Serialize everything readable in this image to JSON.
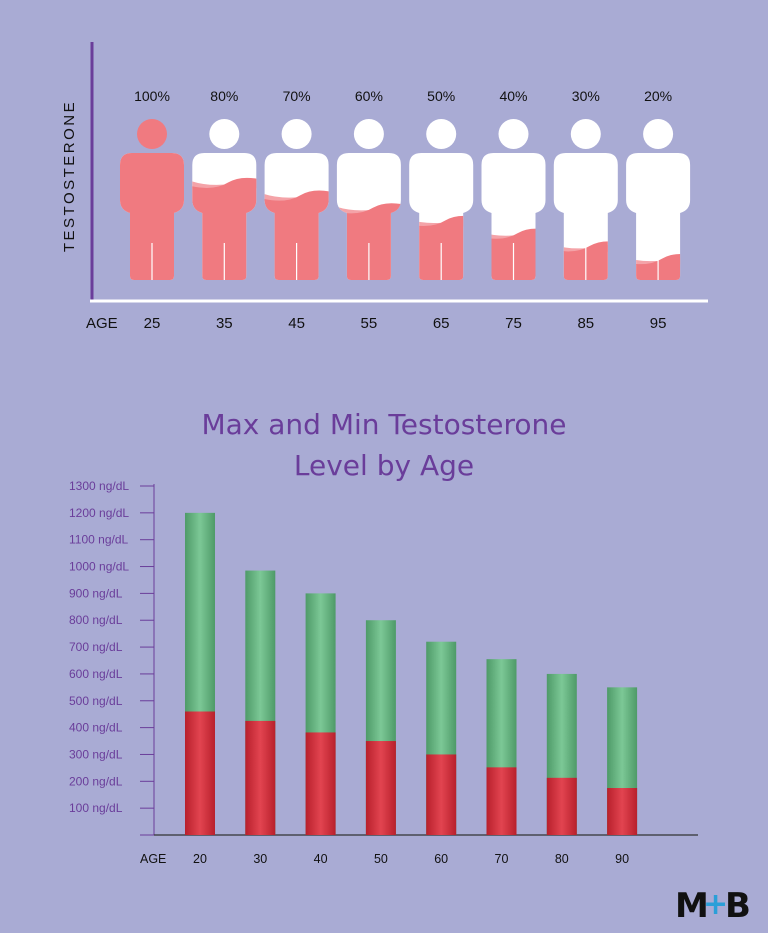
{
  "colors": {
    "background": "#a9abd4",
    "figure_fill": "#f07a80",
    "figure_light": "#f4a3a8",
    "figure_empty": "#ffffff",
    "top_axis": "#6a3d9a",
    "title": "#6a3d9a",
    "max_bar_top": "#6ec08c",
    "max_bar_bottom": "#4e9a68",
    "min_bar": "#d6333f",
    "logo_plus": "#2a9fd8"
  },
  "top_chart": {
    "y_axis_label": "TESTOSTERONE",
    "x_axis_label": "AGE",
    "figures": [
      {
        "age": "25",
        "percent_label": "100%",
        "level": 1.0
      },
      {
        "age": "35",
        "percent_label": "80%",
        "level": 0.8
      },
      {
        "age": "45",
        "percent_label": "70%",
        "level": 0.7
      },
      {
        "age": "55",
        "percent_label": "60%",
        "level": 0.6
      },
      {
        "age": "65",
        "percent_label": "50%",
        "level": 0.5
      },
      {
        "age": "75",
        "percent_label": "40%",
        "level": 0.4
      },
      {
        "age": "85",
        "percent_label": "30%",
        "level": 0.3
      },
      {
        "age": "95",
        "percent_label": "20%",
        "level": 0.2
      }
    ]
  },
  "chart_data": {
    "type": "bar",
    "title": [
      "Max and Min Testosterone",
      "Level by Age"
    ],
    "xlabel": "AGE",
    "ylabel": "",
    "categories": [
      "20",
      "30",
      "40",
      "50",
      "60",
      "70",
      "80",
      "90"
    ],
    "series": [
      {
        "name": "Max",
        "values": [
          1200,
          985,
          900,
          800,
          720,
          655,
          600,
          550
        ]
      },
      {
        "name": "Min",
        "values": [
          460,
          425,
          382,
          350,
          300,
          252,
          213,
          175
        ]
      }
    ],
    "ylim": [
      0,
      1300
    ],
    "y_ticks": [
      {
        "value": 100,
        "label": "100 ng/dL"
      },
      {
        "value": 200,
        "label": "200 ng/dL"
      },
      {
        "value": 300,
        "label": "300 ng/dL"
      },
      {
        "value": 400,
        "label": "400 ng/dL"
      },
      {
        "value": 500,
        "label": "500 ng/dL"
      },
      {
        "value": 600,
        "label": "600 ng/dL"
      },
      {
        "value": 700,
        "label": "700 ng/dL"
      },
      {
        "value": 800,
        "label": "800 ng/dL"
      },
      {
        "value": 900,
        "label": "900 ng/dL"
      },
      {
        "value": 1000,
        "label": "1000 ng/dL"
      },
      {
        "value": 1100,
        "label": "1100 ng/dL"
      },
      {
        "value": 1200,
        "label": "1200 ng/dL"
      },
      {
        "value": 1300,
        "label": "1300 ng/dL"
      }
    ],
    "grid": false
  },
  "logo": {
    "left": "M",
    "plus": "+",
    "right": "B"
  }
}
